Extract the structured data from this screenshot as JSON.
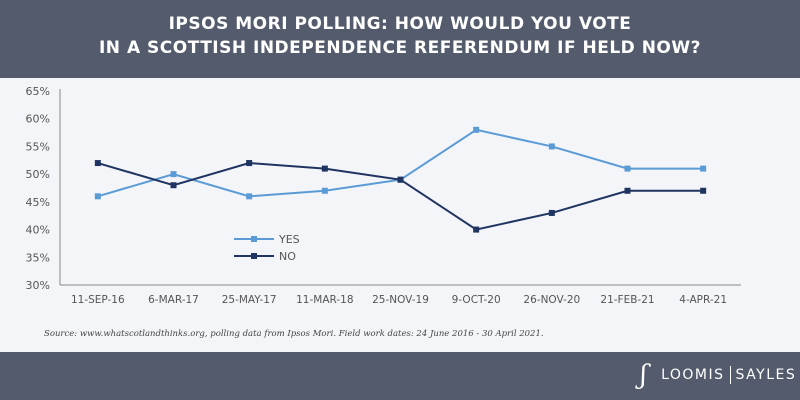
{
  "header": {
    "title_line1": "IPSOS MORI POLLING: HOW WOULD YOU VOTE",
    "title_line2": "IN A SCOTTISH INDEPENDENCE REFERENDUM IF HELD NOW?"
  },
  "source": "Source: www.whatscotlandthinks.org, polling data from Ipsos Mori. Field work dates: 24 June 2016 - 30 April 2021.",
  "logo": {
    "left": "LOOMIS",
    "right": "SAYLES",
    "mark": "LS"
  },
  "chart_data": {
    "type": "line",
    "title": "IPSOS MORI POLLING: HOW WOULD YOU VOTE IN A SCOTTISH INDEPENDENCE REFERENDUM IF HELD NOW?",
    "categories": [
      "11-SEP-16",
      "6-MAR-17",
      "25-MAY-17",
      "11-MAR-18",
      "25-NOV-19",
      "9-OCT-20",
      "26-NOV-20",
      "21-FEB-21",
      "4-APR-21"
    ],
    "ylim": [
      30,
      65
    ],
    "yticks": [
      30,
      35,
      40,
      45,
      50,
      55,
      60,
      65
    ],
    "ytick_labels": [
      "30%",
      "35%",
      "40%",
      "45%",
      "50%",
      "55%",
      "60%",
      "65%"
    ],
    "grid": false,
    "legend_position": "center-left",
    "series": [
      {
        "name": "YES",
        "color": "#5b9bd5",
        "values": [
          46,
          50,
          46,
          47,
          49,
          58,
          55,
          51,
          51
        ]
      },
      {
        "name": "NO",
        "color": "#1f3461",
        "values": [
          52,
          48,
          52,
          51,
          49,
          40,
          43,
          47,
          47
        ]
      }
    ]
  }
}
